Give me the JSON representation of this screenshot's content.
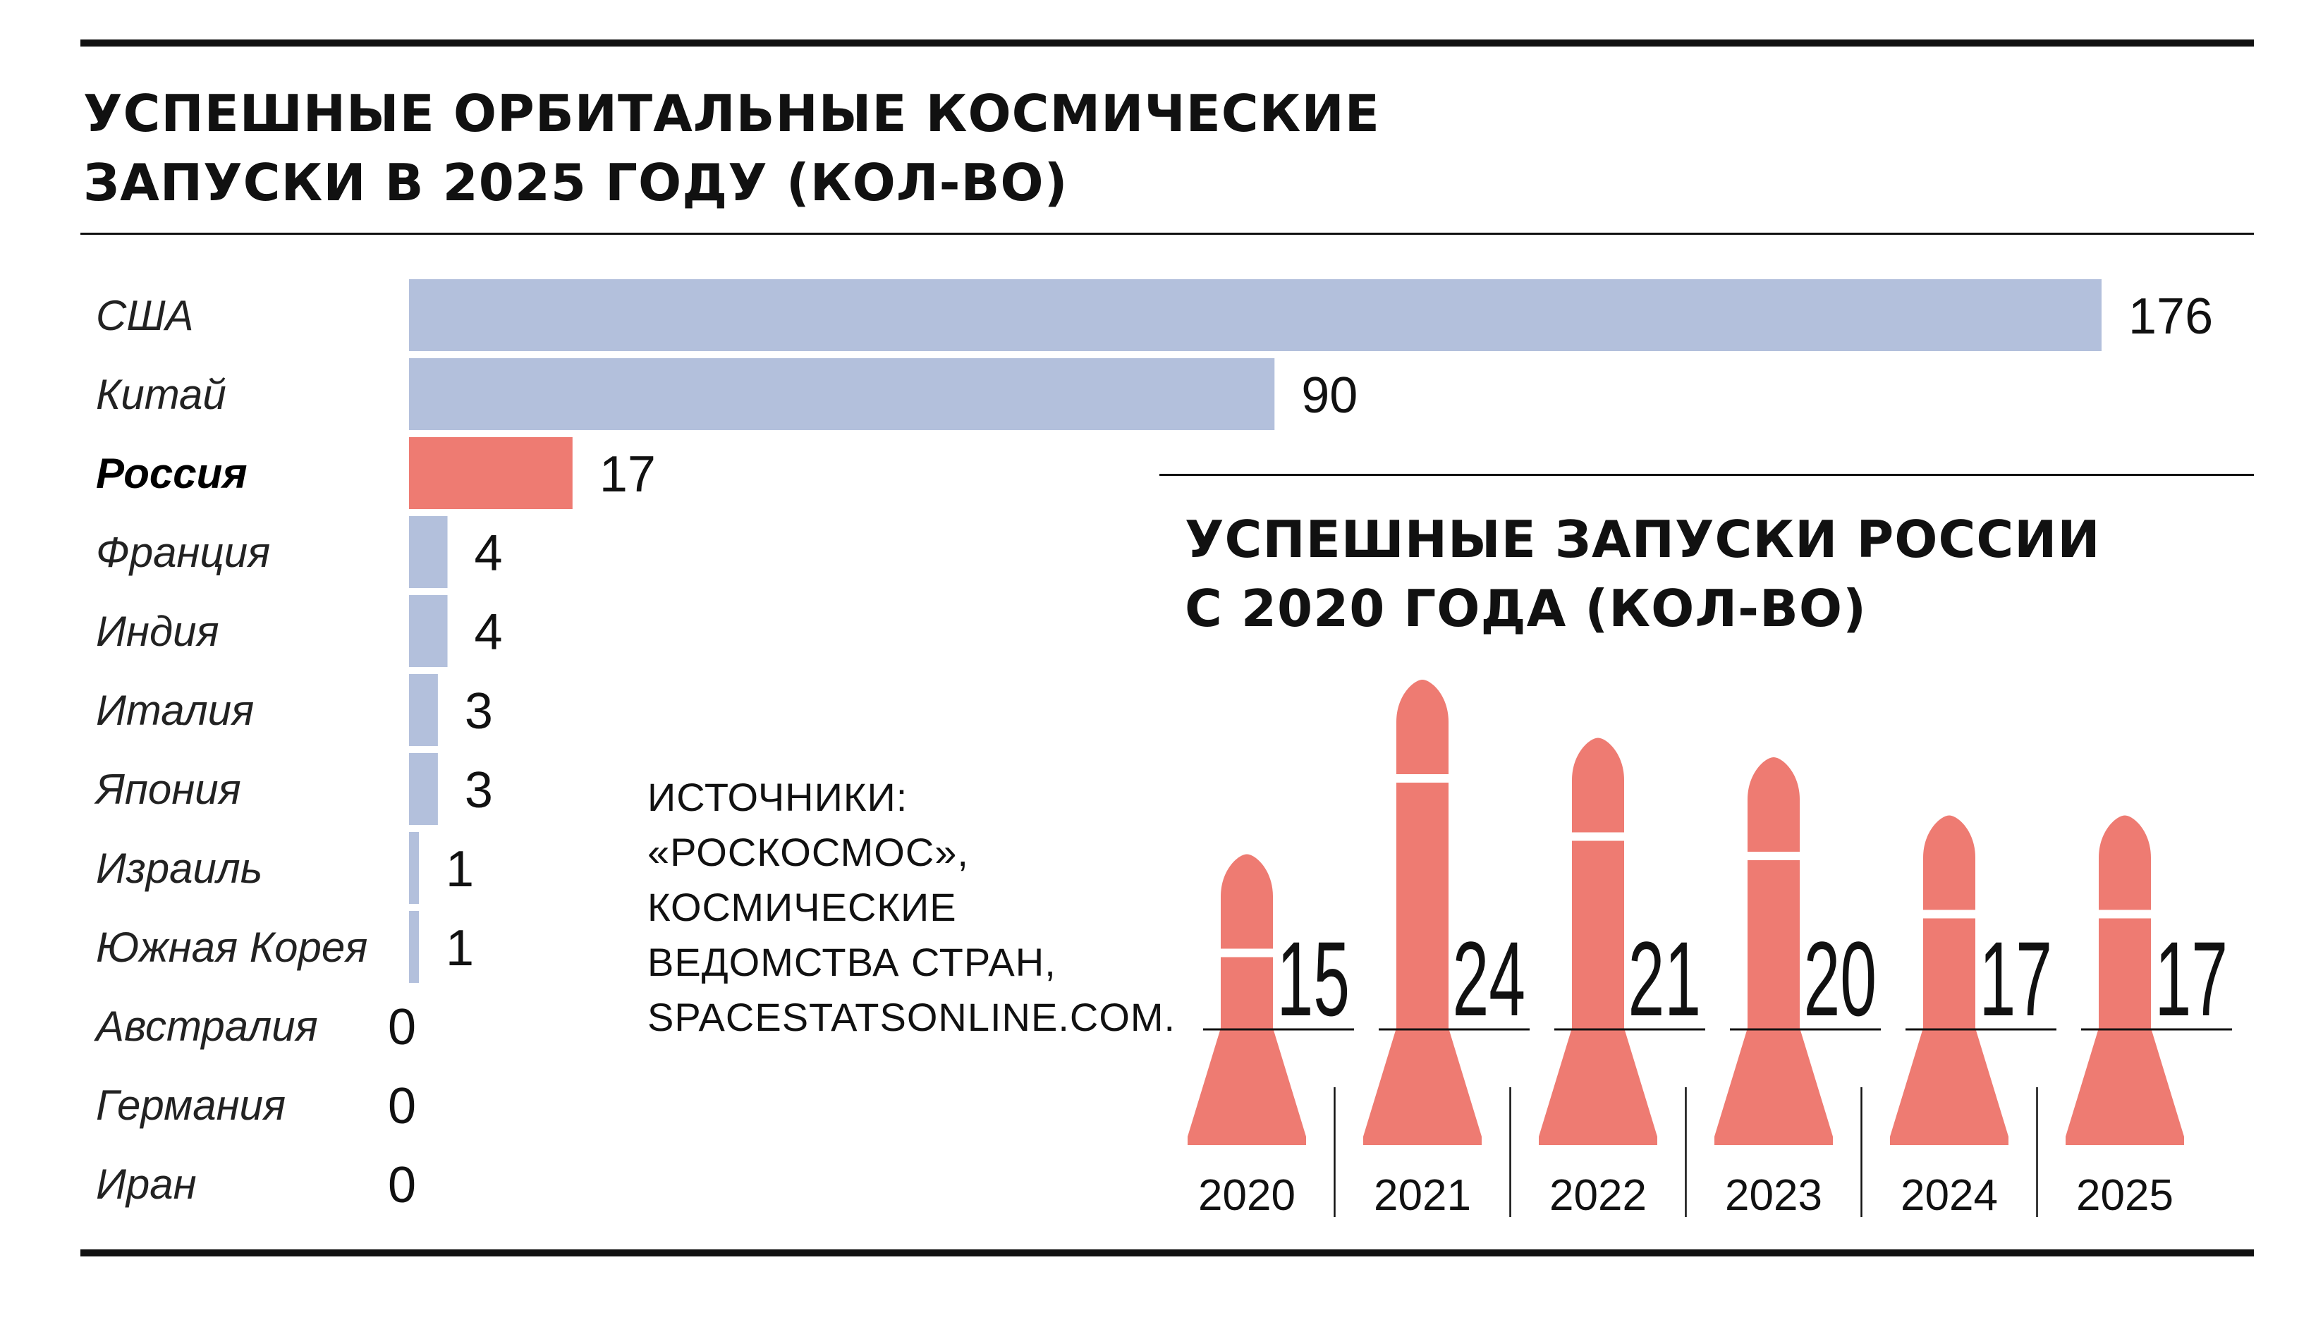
{
  "main_title": [
    "УСПЕШНЫЕ ОРБИТАЛЬНЫЕ КОСМИЧЕСКИЕ",
    "ЗАПУСКИ В 2025 ГОДУ (КОЛ-ВО)"
  ],
  "inset_title": [
    "УСПЕШНЫЕ ЗАПУСКИ РОССИИ",
    "С 2020 ГОДА (КОЛ-ВО)"
  ],
  "sources": [
    "ИСТОЧНИКИ:",
    "«РОСКОСМОС»,",
    "КОСМИЧЕСКИЕ",
    "ВЕДОМСТВА СТРАН,",
    "SPACESTATSONLINE.COM."
  ],
  "colors": {
    "bar": "#b3c0dc",
    "highlight": "#ee7b72",
    "rocket": "#ee7b72",
    "rule": "#111111"
  },
  "chart_data": [
    {
      "type": "bar",
      "orientation": "horizontal",
      "title": "УСПЕШНЫЕ ОРБИТАЛЬНЫЕ КОСМИЧЕСКИЕ ЗАПУСКИ В 2025 ГОДУ (КОЛ-ВО)",
      "categories": [
        "США",
        "Китай",
        "Россия",
        "Франция",
        "Индия",
        "Италия",
        "Япония",
        "Израиль",
        "Южная Корея",
        "Австралия",
        "Германия",
        "Иран"
      ],
      "values": [
        176,
        90,
        17,
        4,
        4,
        3,
        3,
        1,
        1,
        0,
        0,
        0
      ],
      "highlight": "Россия",
      "xlim": [
        0,
        176
      ]
    },
    {
      "type": "bar",
      "style": "rocket pictogram",
      "title": "УСПЕШНЫЕ ЗАПУСКИ РОССИИ С 2020 ГОДА (КОЛ-ВО)",
      "categories": [
        "2020",
        "2021",
        "2022",
        "2023",
        "2024",
        "2025"
      ],
      "values": [
        15,
        24,
        21,
        20,
        17,
        17
      ],
      "ylim": [
        0,
        24
      ]
    }
  ]
}
